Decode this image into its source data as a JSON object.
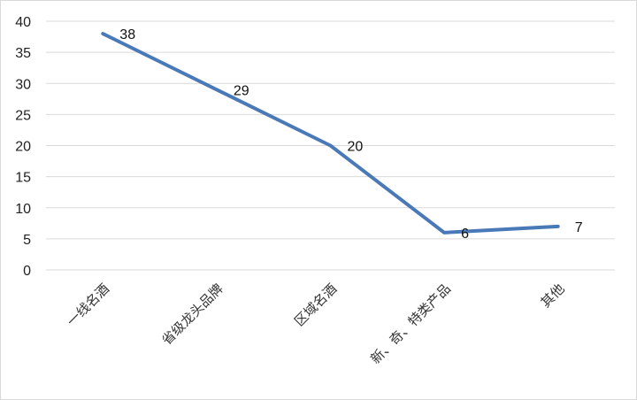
{
  "chart_data": {
    "type": "line",
    "title": "",
    "xlabel": "",
    "ylabel": "",
    "categories": [
      "一线名酒",
      "省级龙头品牌",
      "区域名酒",
      "新、奇、特类产品",
      "其他"
    ],
    "series": [
      {
        "values": [
          38,
          29,
          20,
          6,
          7
        ],
        "color": "#4a79b8"
      }
    ],
    "ylim": [
      0,
      40
    ],
    "yticks": [
      0,
      5,
      10,
      15,
      20,
      25,
      30,
      35,
      40
    ],
    "grid": true,
    "legend": "none",
    "data_labels": true
  },
  "colors": {
    "line": "#4a79b8",
    "grid": "#d9d9d9",
    "text": "#222222"
  }
}
